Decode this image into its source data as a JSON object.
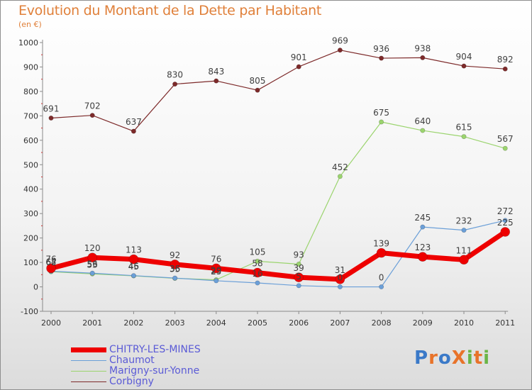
{
  "title": "Evolution du Montant de la Dette par Habitant",
  "subtitle": "(en €)",
  "logo": {
    "text": "ProXiti",
    "letters": [
      "P",
      "r",
      "o",
      "X",
      "i",
      "t",
      "i"
    ],
    "colors": [
      "#3a79c8",
      "#e8732a",
      "#3a79c8",
      "#e8732a",
      "#6ab547",
      "#e8732a",
      "#6ab547"
    ]
  },
  "chart_data": {
    "type": "line",
    "title": "Evolution du Montant de la Dette par Habitant",
    "ylabel": "(en €)",
    "xlabel": "",
    "x": [
      "2000",
      "2001",
      "2002",
      "2003",
      "2004",
      "2005",
      "2006",
      "2007",
      "2008",
      "2009",
      "2010",
      "2011"
    ],
    "yticks": [
      "-100",
      "0",
      "100",
      "200",
      "300",
      "400",
      "500",
      "600",
      "700",
      "800",
      "900",
      "1000"
    ],
    "ylim": [
      -100,
      1000
    ],
    "grid": false,
    "legend": "bottom-left",
    "series": [
      {
        "name": "Corbigny",
        "color": "#7d2a2a",
        "width": 1.2,
        "marker": 3.2,
        "values": [
          691,
          702,
          637,
          830,
          843,
          805,
          901,
          969,
          936,
          938,
          904,
          892
        ],
        "labels": [
          "691",
          "702",
          "637",
          "830",
          "843",
          "805",
          "901",
          "969",
          "936",
          "938",
          "904",
          "892"
        ]
      },
      {
        "name": "Marigny-sur-Yonne",
        "color": "#9bd46e",
        "width": 1.2,
        "marker": 3.2,
        "values": [
          62,
          53,
          45,
          35,
          29,
          105,
          93,
          452,
          675,
          640,
          615,
          567
        ],
        "labels": [
          "62",
          "53",
          "45",
          "35",
          "29",
          "105",
          "93",
          "452",
          "675",
          "640",
          "615",
          "567"
        ]
      },
      {
        "name": "Chaumot",
        "color": "#6b9fd8",
        "width": 1.2,
        "marker": 3.2,
        "values": [
          64,
          56,
          46,
          36,
          25,
          16,
          5,
          0,
          0,
          245,
          232,
          272
        ],
        "labels": [
          "64",
          "56",
          "46",
          "36",
          "25",
          "16",
          "5",
          "0",
          "0",
          "245",
          "232",
          "272"
        ]
      },
      {
        "name": "CHITRY-LES-MINES",
        "color": "#ee0000",
        "width": 7,
        "marker": 6.5,
        "values": [
          76,
          120,
          113,
          92,
          76,
          58,
          39,
          31,
          139,
          123,
          111,
          225
        ],
        "labels": [
          "76",
          "120",
          "113",
          "92",
          "76",
          "58",
          "39",
          "31",
          "139",
          "123",
          "111",
          "225"
        ]
      }
    ]
  },
  "legend": {
    "items": [
      {
        "label": "CHITRY-LES-MINES",
        "color": "#ee0000",
        "thickness": 7
      },
      {
        "label": "Chaumot",
        "color": "#6b9fd8",
        "thickness": 1.5
      },
      {
        "label": "Marigny-sur-Yonne",
        "color": "#9bd46e",
        "thickness": 1.5
      },
      {
        "label": "Corbigny",
        "color": "#7d2a2a",
        "thickness": 1.5
      }
    ]
  }
}
